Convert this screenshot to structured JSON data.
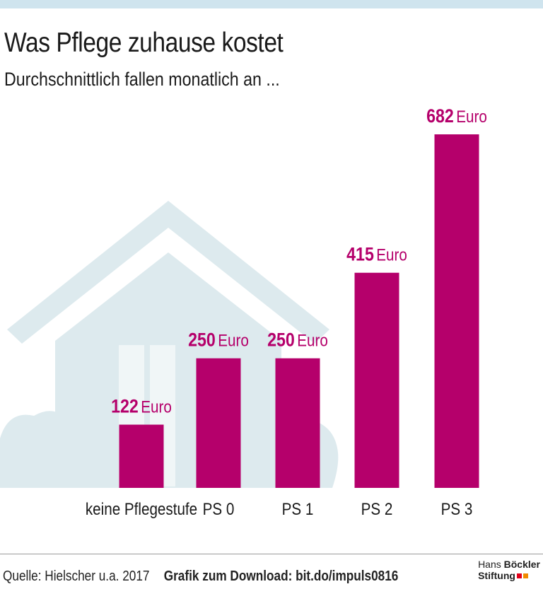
{
  "header": {
    "title": "Was Pflege zuhause kostet",
    "subtitle": "Durchschnittlich fallen monatlich an ..."
  },
  "chart_data": {
    "type": "bar",
    "title": "Was Pflege zuhause kostet",
    "subtitle": "Durchschnittlich fallen monatlich an ...",
    "categories": [
      "keine Pflegestufe",
      "PS 0",
      "PS 1",
      "PS 2",
      "PS 3"
    ],
    "values": [
      122,
      250,
      250,
      415,
      682
    ],
    "unit": "Euro",
    "value_labels": [
      "122",
      "250",
      "250",
      "415",
      "682"
    ],
    "ylim": [
      0,
      682
    ],
    "grid": false,
    "legend": "none"
  },
  "colors": {
    "bar": "#b5006b",
    "value_label": "#b5006b",
    "house": "#ddeaee",
    "topbar": "#cfe4ee"
  },
  "footer": {
    "source": "Quelle: Hielscher u.a. 2017",
    "download": "Grafik zum Download: bit.do/impuls0816"
  },
  "logo": {
    "line1_plain": "Hans",
    "line1_bold": "Böckler",
    "line2": "Stiftung"
  }
}
